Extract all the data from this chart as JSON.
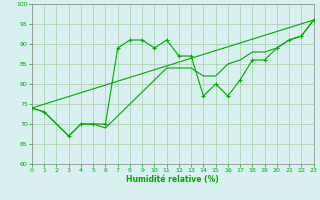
{
  "background_color": "#d8f0f0",
  "line_color": "#00aa00",
  "grid_color": "#a8cca8",
  "xlabel": "Humidité relative (%)",
  "xlim": [
    0,
    23
  ],
  "ylim": [
    60,
    100
  ],
  "yticks": [
    60,
    65,
    70,
    75,
    80,
    85,
    90,
    95,
    100
  ],
  "xticks": [
    0,
    1,
    2,
    3,
    4,
    5,
    6,
    7,
    8,
    9,
    10,
    11,
    12,
    13,
    14,
    15,
    16,
    17,
    18,
    19,
    20,
    21,
    22,
    23
  ],
  "zigzag_x": [
    0,
    1,
    3,
    4,
    5,
    6,
    7,
    8,
    9,
    10,
    11,
    12,
    13,
    14,
    15,
    16,
    17,
    18,
    19,
    20,
    21,
    22,
    23
  ],
  "zigzag_y": [
    74,
    73,
    67,
    70,
    70,
    70,
    89,
    91,
    91,
    89,
    91,
    87,
    87,
    77,
    80,
    77,
    81,
    86,
    86,
    89,
    91,
    92,
    96
  ],
  "trend_x": [
    0,
    23
  ],
  "trend_y": [
    74,
    96
  ],
  "curve_x": [
    0,
    1,
    3,
    4,
    5,
    6,
    11,
    12,
    13,
    14,
    15,
    16,
    17,
    18,
    19,
    20,
    21,
    22,
    23
  ],
  "curve_y": [
    74,
    73,
    67,
    70,
    70,
    69,
    84,
    84,
    84,
    82,
    82,
    85,
    86,
    88,
    88,
    89,
    91,
    92,
    96
  ]
}
